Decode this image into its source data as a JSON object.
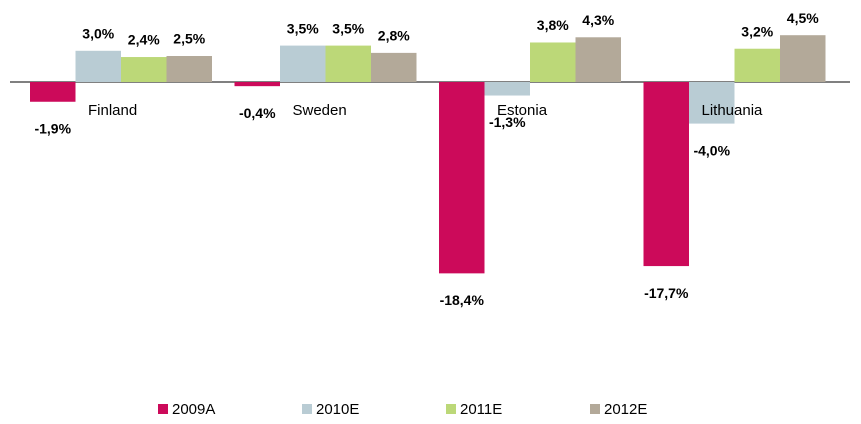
{
  "chart_data": {
    "type": "bar",
    "categories": [
      "Finland",
      "Sweden",
      "Estonia",
      "Lithuania"
    ],
    "series": [
      {
        "name": "2009A",
        "color": "#cc0a5a",
        "values": [
          -1.9,
          -0.4,
          -18.4,
          -17.7
        ],
        "value_labels": [
          "-1,9%",
          "-0,4%",
          "-18,4%",
          "-17,7%"
        ]
      },
      {
        "name": "2010E",
        "color": "#b9ccd4",
        "values": [
          3.0,
          3.5,
          -1.3,
          -4.0
        ],
        "value_labels": [
          "3,0%",
          "3,5%",
          "-1,3%",
          "-4,0%"
        ]
      },
      {
        "name": "2011E",
        "color": "#bcd878",
        "values": [
          2.4,
          3.5,
          3.8,
          3.2
        ],
        "value_labels": [
          "2,4%",
          "3,5%",
          "3,8%",
          "3,2%"
        ]
      },
      {
        "name": "2012E",
        "color": "#b3a999",
        "values": [
          2.5,
          2.8,
          4.3,
          4.5
        ],
        "value_labels": [
          "2,5%",
          "2,8%",
          "4,3%",
          "4,5%"
        ]
      }
    ]
  }
}
